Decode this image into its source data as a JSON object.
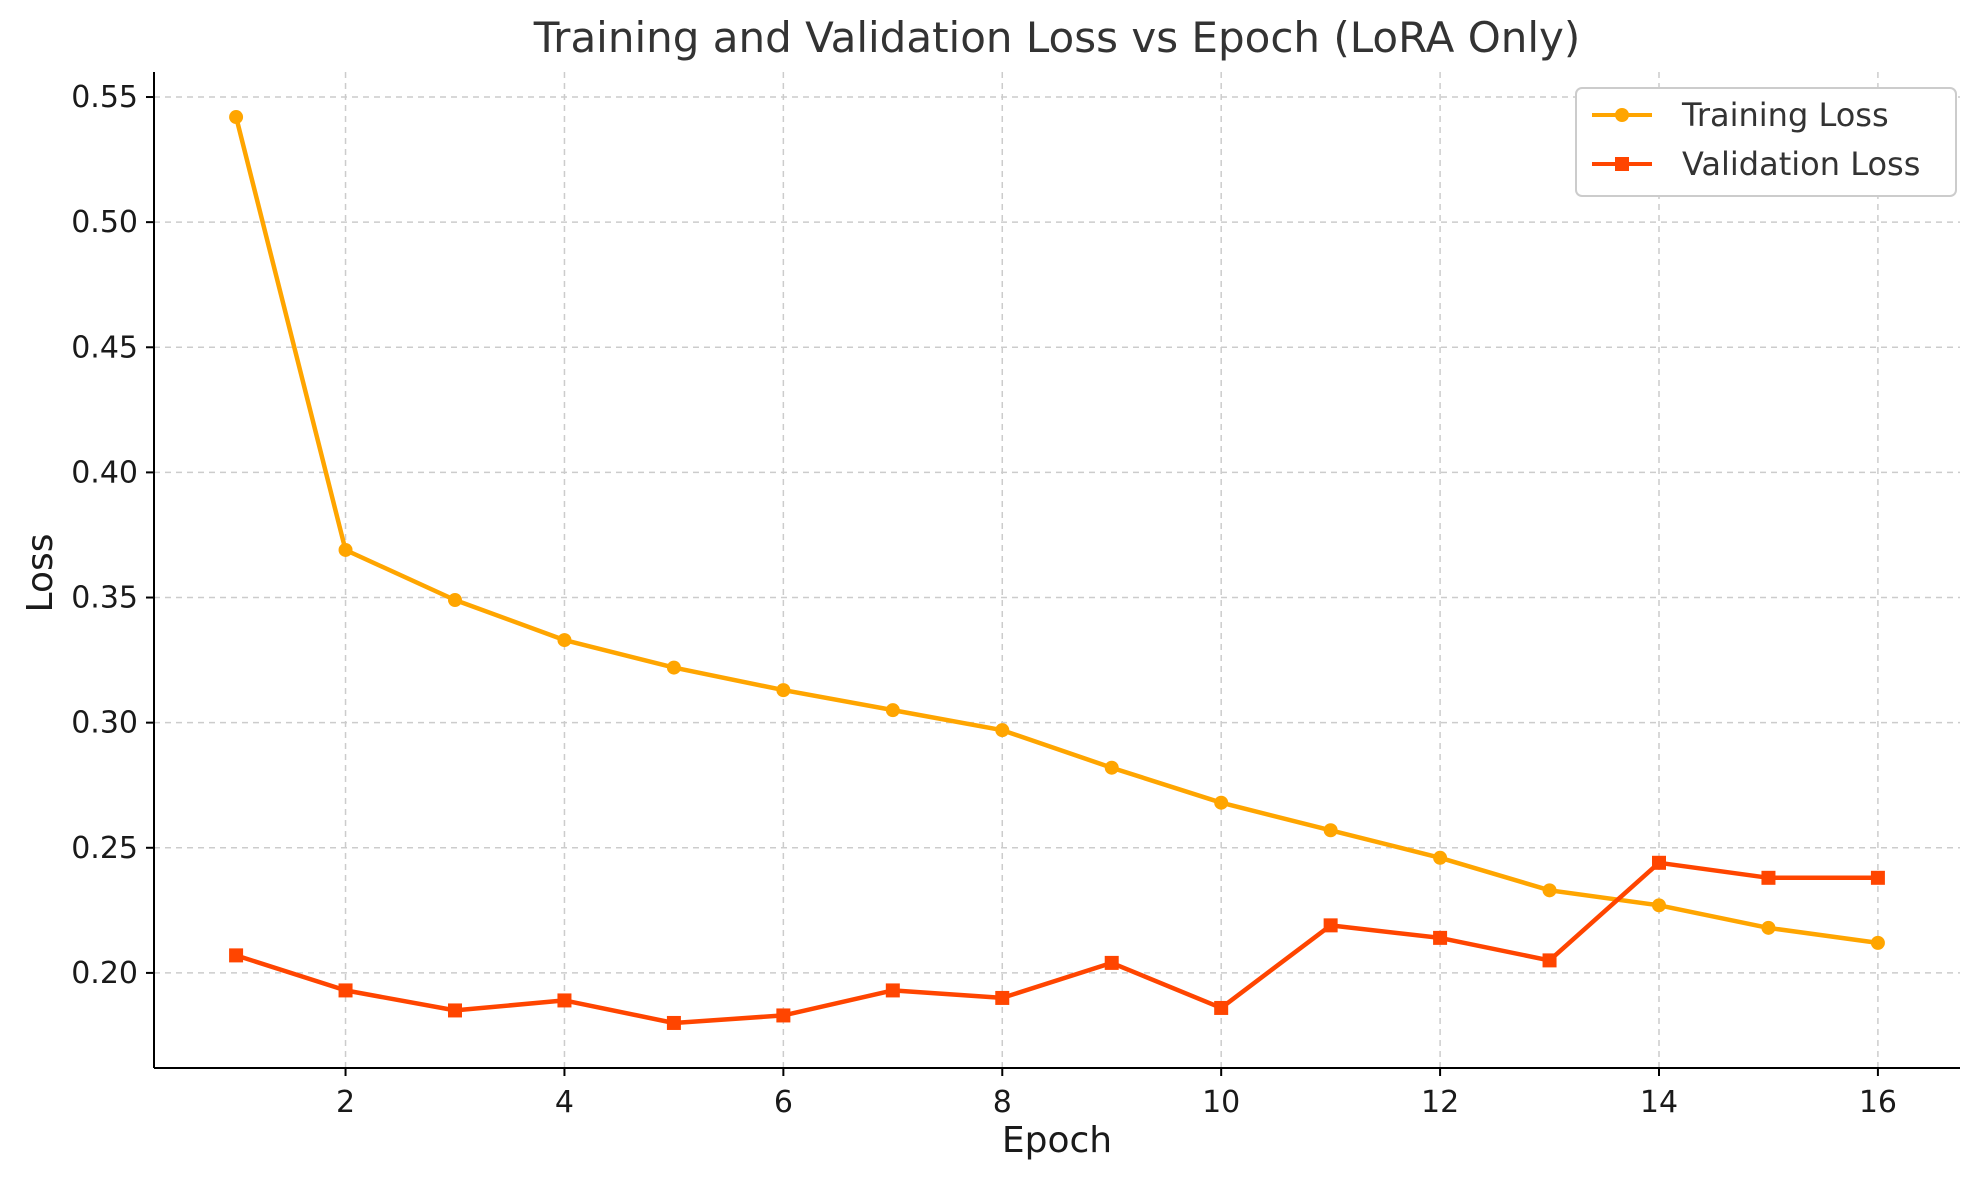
{
  "chart_data": {
    "type": "line",
    "title": "Training and Validation Loss vs Epoch (LoRA Only)",
    "xlabel": "Epoch",
    "ylabel": "Loss",
    "x": [
      1,
      2,
      3,
      4,
      5,
      6,
      7,
      8,
      9,
      10,
      11,
      12,
      13,
      14,
      15,
      16
    ],
    "xlim": [
      0.25,
      16.75
    ],
    "ylim": [
      0.162,
      0.56
    ],
    "xticks": [
      2,
      4,
      6,
      8,
      10,
      12,
      14,
      16
    ],
    "xtick_labels": [
      "2",
      "4",
      "6",
      "8",
      "10",
      "12",
      "14",
      "16"
    ],
    "yticks": [
      0.2,
      0.25,
      0.3,
      0.35,
      0.4,
      0.45,
      0.5,
      0.55
    ],
    "ytick_labels": [
      "0.20",
      "0.25",
      "0.30",
      "0.35",
      "0.40",
      "0.45",
      "0.50",
      "0.55"
    ],
    "grid": true,
    "legend_position": "top-right",
    "series": [
      {
        "name": "Training Loss",
        "color": "#FFA500",
        "marker": "circle",
        "values": [
          0.542,
          0.369,
          0.349,
          0.333,
          0.322,
          0.313,
          0.305,
          0.297,
          0.282,
          0.268,
          0.257,
          0.246,
          0.233,
          0.227,
          0.218,
          0.212
        ]
      },
      {
        "name": "Validation Loss",
        "color": "#FF4500",
        "marker": "square",
        "values": [
          0.207,
          0.193,
          0.185,
          0.189,
          0.18,
          0.183,
          0.193,
          0.19,
          0.204,
          0.186,
          0.219,
          0.214,
          0.205,
          0.244,
          0.238,
          0.238
        ]
      }
    ]
  }
}
